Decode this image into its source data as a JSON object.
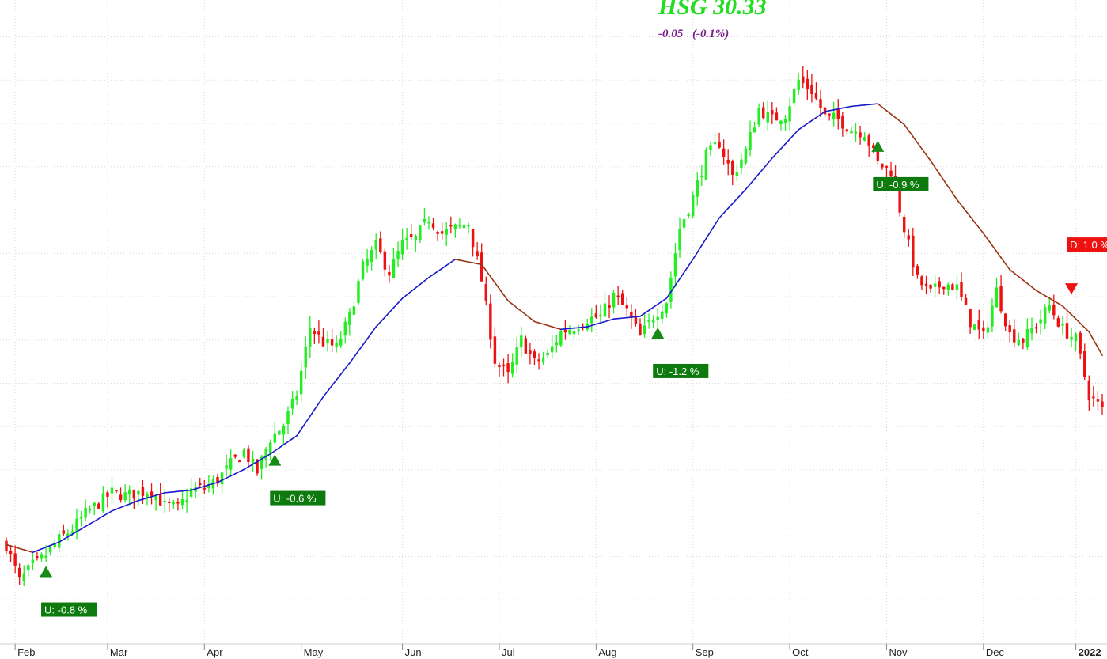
{
  "header": {
    "ticker_text": "HSG 30.33",
    "change_abs": "-0.05",
    "change_pct": "(-0.1%)"
  },
  "colors": {
    "up": "#22ee22",
    "down": "#ee1111",
    "ma_up": "#1a1acc",
    "ma_down": "#993311",
    "signal_up_bg": "#0d7a0d",
    "signal_down_bg": "#ee1111",
    "grid": "#d8d8d8",
    "ticker": "#22dd22",
    "change": "#7a1f8a"
  },
  "chart_data": {
    "type": "candlestick",
    "title": "HSG 30.33",
    "xaxis": {
      "ticks": [
        "Feb",
        "Mar",
        "Apr",
        "May",
        "Jun",
        "Jul",
        "Aug",
        "Sep",
        "Oct",
        "Nov",
        "Dec",
        "2022"
      ],
      "tick_days": [
        2,
        23,
        45,
        67,
        90,
        112,
        134,
        156,
        178,
        200,
        222,
        243
      ],
      "bold_tick": "2022"
    },
    "yaxis": {
      "ylim": [
        17.0,
        41.8
      ],
      "grid_step": 1.67,
      "labels_visible": false
    },
    "grid": true,
    "series": [
      {
        "name": "price",
        "type": "candlestick",
        "points": [
          [
            0,
            20.8
          ],
          [
            3,
            19.4
          ],
          [
            6,
            20.0
          ],
          [
            9,
            20.4
          ],
          [
            12,
            21.0
          ],
          [
            15,
            21.4
          ],
          [
            18,
            22.0
          ],
          [
            21,
            22.4
          ],
          [
            24,
            22.8
          ],
          [
            27,
            22.7
          ],
          [
            30,
            22.8
          ],
          [
            33,
            22.9
          ],
          [
            36,
            22.3
          ],
          [
            39,
            22.2
          ],
          [
            42,
            22.9
          ],
          [
            45,
            23.0
          ],
          [
            48,
            23.3
          ],
          [
            51,
            23.9
          ],
          [
            54,
            24.4
          ],
          [
            57,
            23.6
          ],
          [
            60,
            24.9
          ],
          [
            63,
            25.4
          ],
          [
            66,
            26.6
          ],
          [
            69,
            29.2
          ],
          [
            72,
            28.6
          ],
          [
            75,
            28.4
          ],
          [
            78,
            29.6
          ],
          [
            81,
            31.5
          ],
          [
            84,
            32.3
          ],
          [
            87,
            31.3
          ],
          [
            90,
            32.4
          ],
          [
            93,
            32.6
          ],
          [
            96,
            33.4
          ],
          [
            99,
            32.8
          ],
          [
            102,
            33.0
          ],
          [
            105,
            33.2
          ],
          [
            108,
            31.0
          ],
          [
            111,
            27.9
          ],
          [
            114,
            27.3
          ],
          [
            117,
            28.7
          ],
          [
            120,
            27.8
          ],
          [
            123,
            28.1
          ],
          [
            126,
            29.0
          ],
          [
            129,
            29.2
          ],
          [
            132,
            29.5
          ],
          [
            135,
            29.6
          ],
          [
            138,
            30.4
          ],
          [
            141,
            29.8
          ],
          [
            144,
            28.8
          ],
          [
            147,
            29.6
          ],
          [
            150,
            30.2
          ],
          [
            153,
            33.0
          ],
          [
            156,
            34.2
          ],
          [
            159,
            35.8
          ],
          [
            162,
            36.3
          ],
          [
            165,
            35.0
          ],
          [
            168,
            36.0
          ],
          [
            171,
            37.6
          ],
          [
            174,
            37.2
          ],
          [
            177,
            37.4
          ],
          [
            180,
            38.7
          ],
          [
            183,
            38.3
          ],
          [
            186,
            37.3
          ],
          [
            189,
            37.2
          ],
          [
            192,
            36.8
          ],
          [
            195,
            36.7
          ],
          [
            198,
            35.5
          ],
          [
            201,
            35.2
          ],
          [
            204,
            33.0
          ],
          [
            207,
            31.0
          ],
          [
            210,
            30.5
          ],
          [
            213,
            30.9
          ],
          [
            216,
            30.7
          ],
          [
            219,
            29.4
          ],
          [
            222,
            28.8
          ],
          [
            225,
            30.6
          ],
          [
            228,
            28.9
          ],
          [
            231,
            28.7
          ],
          [
            234,
            29.3
          ],
          [
            237,
            30.0
          ],
          [
            240,
            29.1
          ],
          [
            243,
            28.7
          ],
          [
            246,
            26.6
          ],
          [
            249,
            26.0
          ]
        ],
        "price_range": [
          18.6,
          40.5
        ]
      },
      {
        "name": "MA",
        "type": "line",
        "colored_by_slope": true,
        "points": [
          [
            0,
            20.8
          ],
          [
            6,
            20.5
          ],
          [
            12,
            20.9
          ],
          [
            18,
            21.5
          ],
          [
            24,
            22.1
          ],
          [
            30,
            22.5
          ],
          [
            36,
            22.8
          ],
          [
            42,
            22.9
          ],
          [
            48,
            23.2
          ],
          [
            54,
            23.7
          ],
          [
            60,
            24.3
          ],
          [
            66,
            25.0
          ],
          [
            72,
            26.5
          ],
          [
            78,
            27.8
          ],
          [
            84,
            29.2
          ],
          [
            90,
            30.3
          ],
          [
            96,
            31.1
          ],
          [
            102,
            31.8
          ],
          [
            108,
            31.6
          ],
          [
            114,
            30.2
          ],
          [
            120,
            29.4
          ],
          [
            126,
            29.1
          ],
          [
            132,
            29.2
          ],
          [
            138,
            29.5
          ],
          [
            144,
            29.6
          ],
          [
            150,
            30.3
          ],
          [
            156,
            31.8
          ],
          [
            162,
            33.4
          ],
          [
            168,
            34.5
          ],
          [
            174,
            35.7
          ],
          [
            180,
            36.8
          ],
          [
            186,
            37.5
          ],
          [
            192,
            37.7
          ],
          [
            198,
            37.8
          ],
          [
            204,
            37.0
          ],
          [
            210,
            35.6
          ],
          [
            216,
            34.1
          ],
          [
            222,
            32.8
          ],
          [
            228,
            31.4
          ],
          [
            234,
            30.6
          ],
          [
            240,
            30.0
          ],
          [
            246,
            29.0
          ],
          [
            249,
            28.1
          ]
        ]
      }
    ],
    "signals": [
      {
        "day": 9,
        "direction": "up",
        "label": "U: -0.8 %",
        "at_price": 20.4
      },
      {
        "day": 61,
        "direction": "up",
        "label": "U: -0.6 %",
        "at_price": 24.7
      },
      {
        "day": 148,
        "direction": "up",
        "label": "U: -1.2 %",
        "at_price": 29.6
      },
      {
        "day": 198,
        "direction": "up",
        "label": "U: -0.9 %",
        "at_price": 36.8
      },
      {
        "day": 242,
        "direction": "down",
        "label": "D: 1.0 %",
        "at_price": 29.9
      }
    ]
  }
}
